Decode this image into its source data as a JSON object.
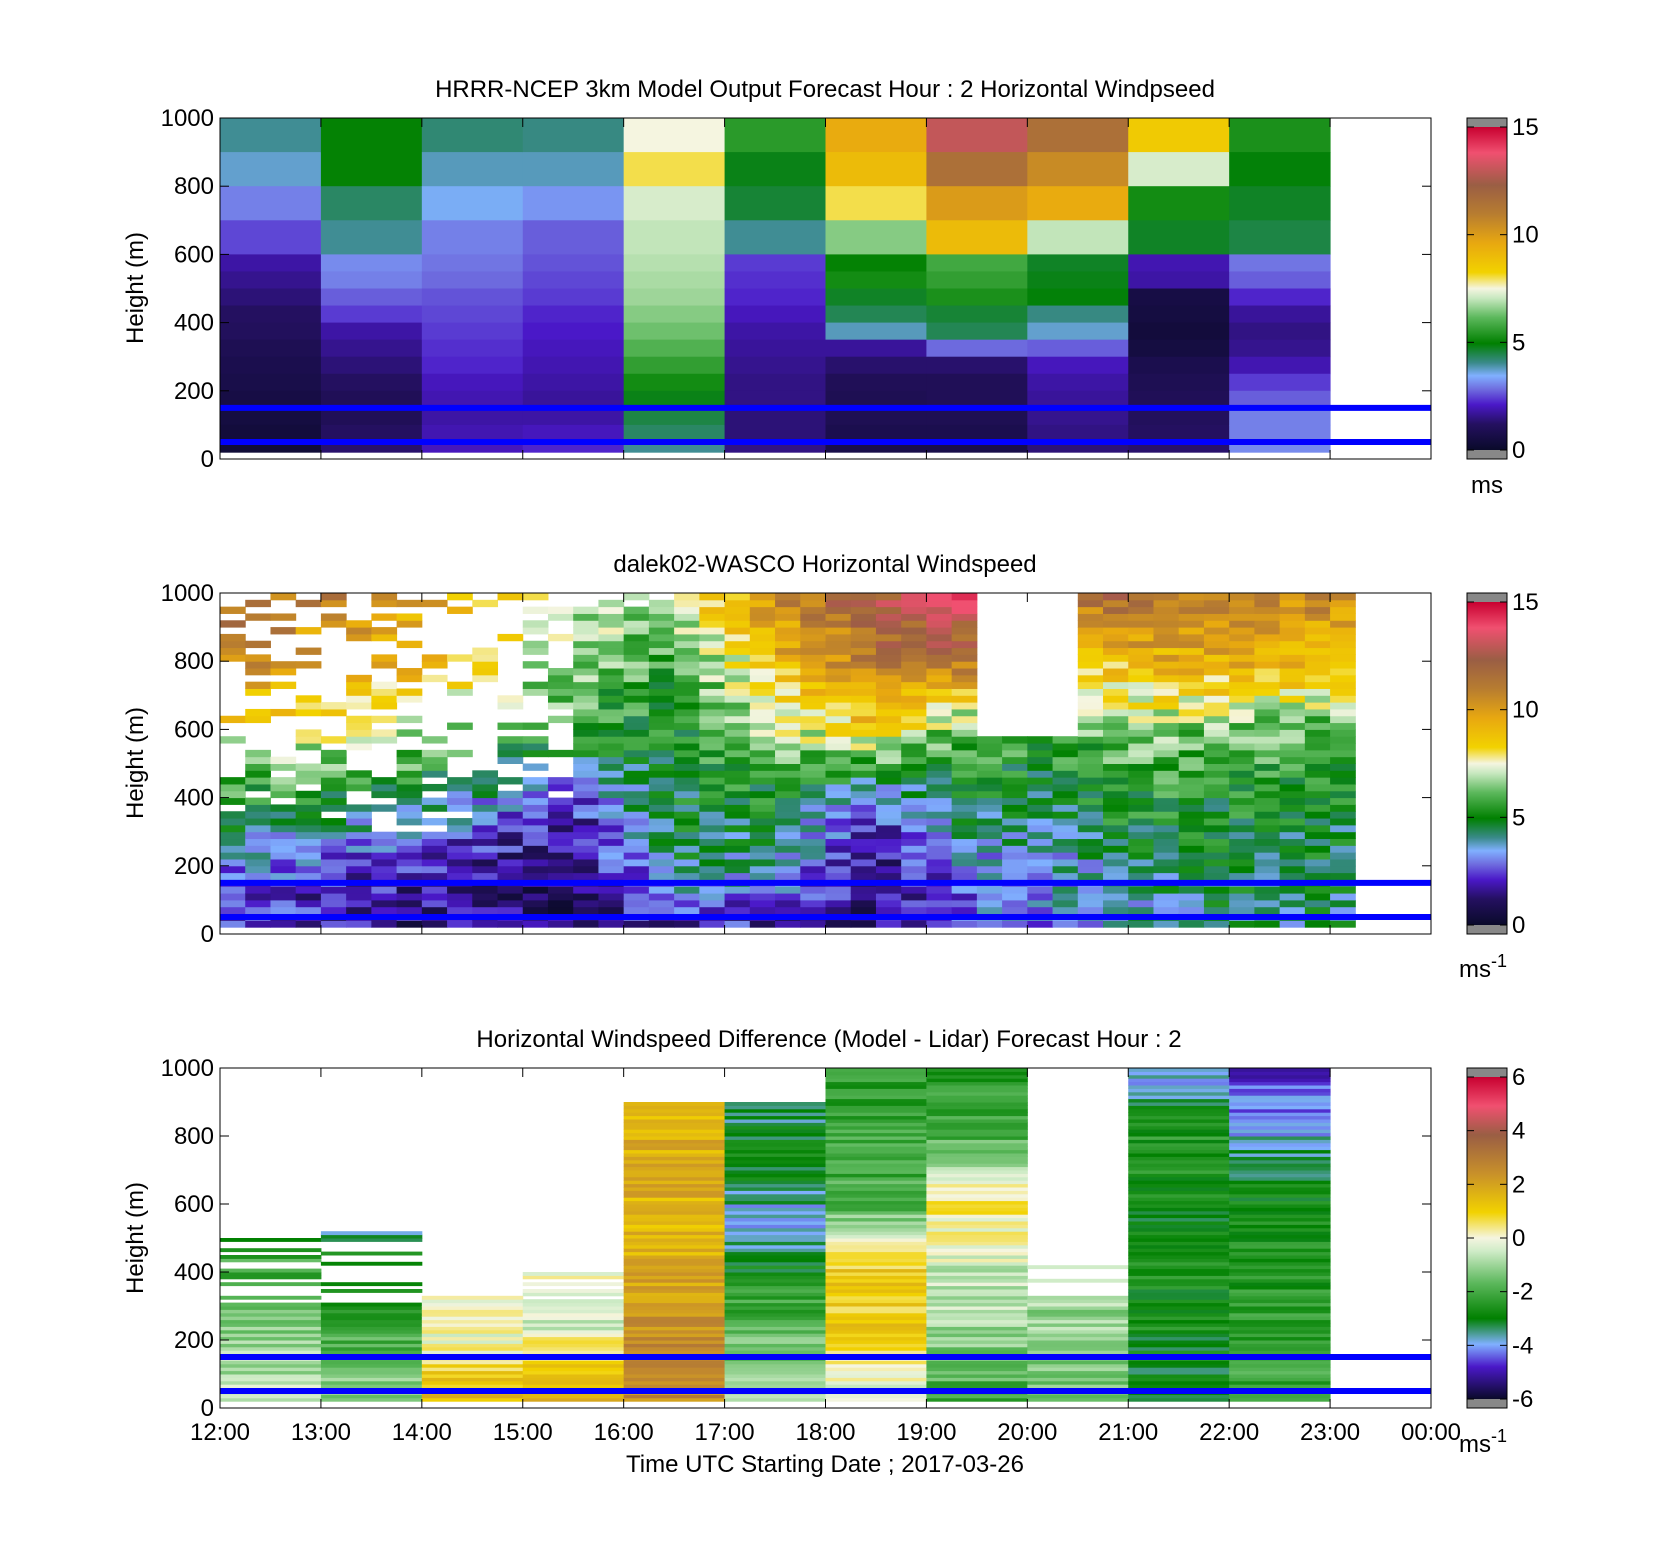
{
  "figure": {
    "xlabel": "Time UTC  Starting Date ; 2017-03-26",
    "xticks": [
      "12:00",
      "13:00",
      "14:00",
      "15:00",
      "16:00",
      "17:00",
      "18:00",
      "19:00",
      "20:00",
      "21:00",
      "22:00",
      "23:00",
      "00:00"
    ],
    "reference_heights_m": [
      50,
      150
    ],
    "reference_line_color": "#0000ff"
  },
  "chart_data": [
    {
      "type": "heatmap",
      "title": "HRRR-NCEP 3km Model Output   Forecast Hour : 2 Horizontal Windpseed",
      "ylabel": "Height (m)",
      "ylim": [
        0,
        1000
      ],
      "yticks": [
        "0",
        "200",
        "400",
        "600",
        "800",
        "1000"
      ],
      "xlim_hours": [
        12,
        24
      ],
      "colorbar": {
        "range": [
          0,
          15
        ],
        "ticks": [
          "0",
          "5",
          "10",
          "15"
        ],
        "unit": "ms",
        "unit_sup": ""
      },
      "heights": [
        1000,
        900,
        800,
        700,
        600,
        550,
        500,
        450,
        400,
        350,
        300,
        250,
        200,
        150,
        100,
        50
      ],
      "columns": [
        {
          "hour": 12,
          "values": [
            4.0,
            3.7,
            3.0,
            2.5,
            1.8,
            1.6,
            1.4,
            1.2,
            1.1,
            0.9,
            0.8,
            0.7,
            0.6,
            0.5,
            0.4,
            0.3
          ]
        },
        {
          "hour": 13,
          "values": [
            5.0,
            5.0,
            4.3,
            4.0,
            3.1,
            3.0,
            2.7,
            2.4,
            1.8,
            1.6,
            1.4,
            1.2,
            1.0,
            1.0,
            1.2,
            1.3
          ]
        },
        {
          "hour": 14,
          "values": [
            4.2,
            3.8,
            3.5,
            3.0,
            2.9,
            2.8,
            2.6,
            2.5,
            2.4,
            2.3,
            2.2,
            2.0,
            1.9,
            1.8,
            1.9,
            2.0
          ]
        },
        {
          "hour": 15,
          "values": [
            4.1,
            3.8,
            3.2,
            2.7,
            2.6,
            2.5,
            2.4,
            2.2,
            2.1,
            2.0,
            1.9,
            1.8,
            1.7,
            1.8,
            2.0,
            2.2
          ]
        },
        {
          "hour": 16,
          "values": [
            7.5,
            8.0,
            7.2,
            7.0,
            6.9,
            6.8,
            6.7,
            6.5,
            6.3,
            6.0,
            5.6,
            5.2,
            4.8,
            4.5,
            4.3,
            4.0
          ]
        },
        {
          "hour": 17,
          "values": [
            5.5,
            4.8,
            4.6,
            4.0,
            2.4,
            2.3,
            2.2,
            2.0,
            1.8,
            1.7,
            1.6,
            1.5,
            1.5,
            1.4,
            1.4,
            1.5
          ]
        },
        {
          "hour": 18,
          "values": [
            9.5,
            9.0,
            8.0,
            6.5,
            5.0,
            5.2,
            4.7,
            4.4,
            3.8,
            1.7,
            1.3,
            1.0,
            0.9,
            0.9,
            0.8,
            0.7
          ]
        },
        {
          "hour": 19,
          "values": [
            13.0,
            11.5,
            10.0,
            9.0,
            5.8,
            5.6,
            5.3,
            4.6,
            4.4,
            2.8,
            1.3,
            1.0,
            1.0,
            0.9,
            0.8,
            0.7
          ]
        },
        {
          "hour": 20,
          "values": [
            11.5,
            10.5,
            9.5,
            7.0,
            4.7,
            4.8,
            4.9,
            4.1,
            3.7,
            2.7,
            2.0,
            1.8,
            1.7,
            1.6,
            1.5,
            1.4
          ]
        },
        {
          "hour": 21,
          "values": [
            8.5,
            7.2,
            5.2,
            4.7,
            1.9,
            1.8,
            0.6,
            0.5,
            0.4,
            0.5,
            0.8,
            0.9,
            1.0,
            1.1,
            1.2,
            1.3
          ]
        },
        {
          "hour": 22,
          "values": [
            5.3,
            4.9,
            4.7,
            4.5,
            2.9,
            2.7,
            2.2,
            1.7,
            1.5,
            1.6,
            1.9,
            2.4,
            2.7,
            3.0,
            3.0,
            3.1
          ]
        }
      ]
    },
    {
      "type": "heatmap",
      "title": "dalek02-WASCO  Horizontal Windspeed",
      "ylabel": "Height (m)",
      "ylim": [
        0,
        1000
      ],
      "yticks": [
        "0",
        "200",
        "400",
        "600",
        "800",
        "1000"
      ],
      "xlim_hours": [
        12,
        24
      ],
      "colorbar": {
        "range": [
          0,
          15
        ],
        "ticks": [
          "0",
          "5",
          "10",
          "15"
        ],
        "unit": "ms",
        "unit_sup": "-1"
      },
      "profile_nodes_hours": [
        12,
        14,
        15.5,
        16.5,
        17.5,
        18.5,
        19.3,
        20.3,
        21,
        22,
        23.2
      ],
      "profile_nodes_m": [
        0,
        200,
        400,
        600,
        800,
        1000
      ],
      "profile_values": [
        [
          2.0,
          3.2,
          5.5,
          8.0,
          10.5,
          11.5
        ],
        [
          1.2,
          2.0,
          4.5,
          7.0,
          9.0,
          10.0
        ],
        [
          1.3,
          1.0,
          2.5,
          5.5,
          6.5,
          7.0
        ],
        [
          1.8,
          4.3,
          4.8,
          5.0,
          5.5,
          7.2
        ],
        [
          1.6,
          3.8,
          5.0,
          6.8,
          9.0,
          10.5
        ],
        [
          1.5,
          1.2,
          3.0,
          8.5,
          11.0,
          12.5
        ],
        [
          2.5,
          3.0,
          4.8,
          6.0,
          11.5,
          14.0
        ],
        [
          3.0,
          3.5,
          4.7,
          5.5,
          8.0,
          11.0
        ],
        [
          3.5,
          4.3,
          5.3,
          6.8,
          9.0,
          12.0
        ],
        [
          4.2,
          4.6,
          5.2,
          6.2,
          9.5,
          11.0
        ],
        [
          4.3,
          4.5,
          4.8,
          5.8,
          9.0,
          10.5
        ]
      ],
      "missing_gap_hours": [
        19.6,
        20.4
      ],
      "missing_gap_m": [
        580,
        1000
      ]
    },
    {
      "type": "heatmap",
      "title": "Horizontal Windspeed Difference (Model - Lidar) Forecast Hour : 2",
      "ylabel": "Height (m)",
      "ylim": [
        0,
        1000
      ],
      "yticks": [
        "0",
        "200",
        "400",
        "600",
        "800",
        "1000"
      ],
      "xlim_hours": [
        12,
        24
      ],
      "colorbar": {
        "range": [
          -6,
          6
        ],
        "ticks": [
          "-6",
          "-4",
          "-2",
          "0",
          "2",
          "4",
          "6"
        ],
        "unit": "ms",
        "unit_sup": "-1"
      },
      "columns": [
        {
          "hour": 12,
          "top_m": 500,
          "values": [
            -0.5,
            -0.8,
            -1.0,
            -1.5,
            -2.0,
            -2.5
          ]
        },
        {
          "hour": 13,
          "top_m": 560,
          "values": [
            -1.0,
            -1.5,
            -2.0,
            -2.5,
            -3.0,
            -4.5
          ]
        },
        {
          "hour": 14,
          "top_m": 340,
          "values": [
            1.5,
            1.2,
            0.5,
            0.0,
            0.0,
            0.0
          ]
        },
        {
          "hour": 15,
          "top_m": 400,
          "values": [
            1.5,
            1.3,
            0.8,
            -0.5,
            -0.5,
            0.0
          ]
        },
        {
          "hour": 16,
          "top_m": 900,
          "values": [
            2.5,
            2.5,
            2.0,
            1.5,
            1.8,
            1.5
          ]
        },
        {
          "hour": 17,
          "top_m": 900,
          "values": [
            -0.5,
            -1.5,
            -2.5,
            -4.0,
            -2.8,
            -3.5
          ]
        },
        {
          "hour": 18,
          "top_m": 1000,
          "values": [
            -0.5,
            1.0,
            1.0,
            -2.0,
            -2.0,
            -2.6
          ]
        },
        {
          "hour": 19,
          "top_m": 1000,
          "values": [
            -2.3,
            -1.0,
            -0.5,
            0.5,
            -2.0,
            -2.5
          ]
        },
        {
          "hour": 20,
          "top_m": 430,
          "values": [
            -1.5,
            -1.5,
            -1.3,
            -1.0,
            -1.0,
            -1.0
          ]
        },
        {
          "hour": 21,
          "top_m": 1000,
          "values": [
            -3.0,
            -2.8,
            -2.7,
            -2.8,
            -2.5,
            -4.2
          ]
        },
        {
          "hour": 22,
          "top_m": 1000,
          "values": [
            -2.0,
            -2.3,
            -2.5,
            -2.6,
            -3.8,
            -5.0
          ]
        }
      ]
    }
  ]
}
